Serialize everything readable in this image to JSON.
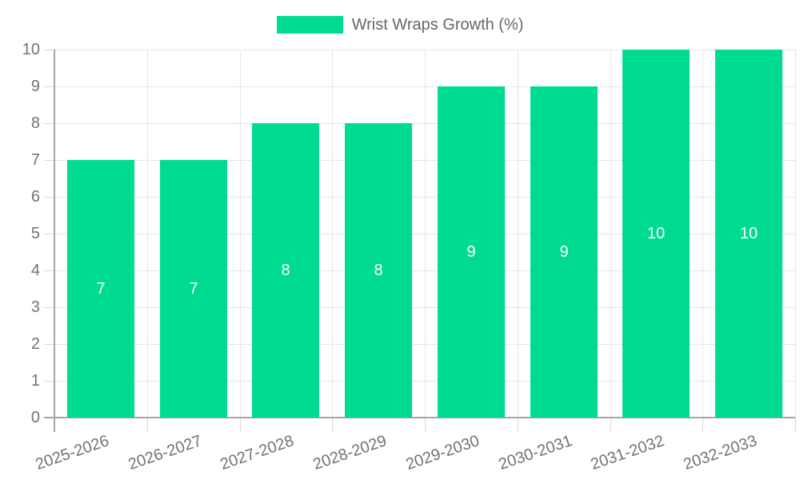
{
  "chart_data": {
    "type": "bar",
    "title": "",
    "legend_label": "Wrist Wraps Growth (%)",
    "legend_position": "top-center",
    "categories": [
      "2025-2026",
      "2026-2027",
      "2027-2028",
      "2028-2029",
      "2029-2030",
      "2030-2031",
      "2031-2032",
      "2032-2033"
    ],
    "values": [
      7,
      7,
      8,
      8,
      9,
      9,
      10,
      10
    ],
    "xlabel": "",
    "ylabel": "",
    "ylim": [
      0,
      10
    ],
    "ytick_step": 1,
    "yticks": [
      0,
      1,
      2,
      3,
      4,
      5,
      6,
      7,
      8,
      9,
      10
    ],
    "grid": true,
    "value_label_position": "inside-center"
  },
  "colors": {
    "bar": "#00DB92",
    "grid": "#E5E5E5",
    "axis": "#A6A6A6",
    "tick": "#D8D8D8",
    "tick_label": "#737373",
    "legend_text": "#666666",
    "value_label": "#FFFFFF",
    "background": "#FFFFFF"
  }
}
